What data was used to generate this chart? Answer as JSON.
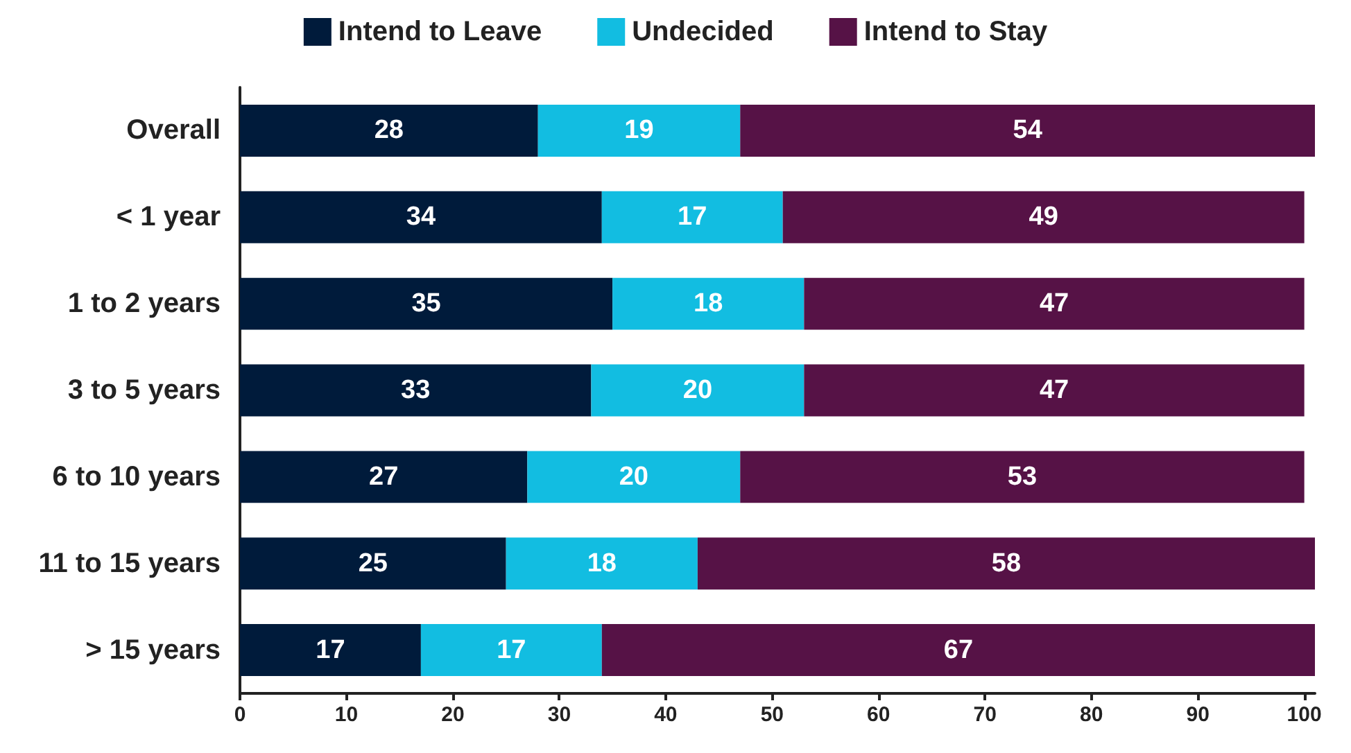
{
  "chart_data": {
    "type": "bar",
    "orientation": "horizontal",
    "stacked": true,
    "categories": [
      "Overall",
      "< 1 year",
      "1 to 2 years",
      "3 to 5 years",
      "6 to 10 years",
      "11 to 15 years",
      "> 15 years"
    ],
    "series": [
      {
        "name": "Intend to Leave",
        "color": "#001b3b",
        "values": [
          28,
          34,
          35,
          33,
          27,
          25,
          17
        ]
      },
      {
        "name": "Undecided",
        "color": "#12bde1",
        "values": [
          19,
          17,
          18,
          20,
          20,
          18,
          17
        ]
      },
      {
        "name": "Intend to Stay",
        "color": "#561246",
        "values": [
          54,
          49,
          47,
          47,
          53,
          58,
          67
        ]
      }
    ],
    "xlim": [
      0,
      101
    ],
    "xticks": [
      0,
      10,
      20,
      30,
      40,
      50,
      60,
      70,
      80,
      90,
      100
    ],
    "data_labels": true,
    "legend": "top",
    "grid": false
  }
}
